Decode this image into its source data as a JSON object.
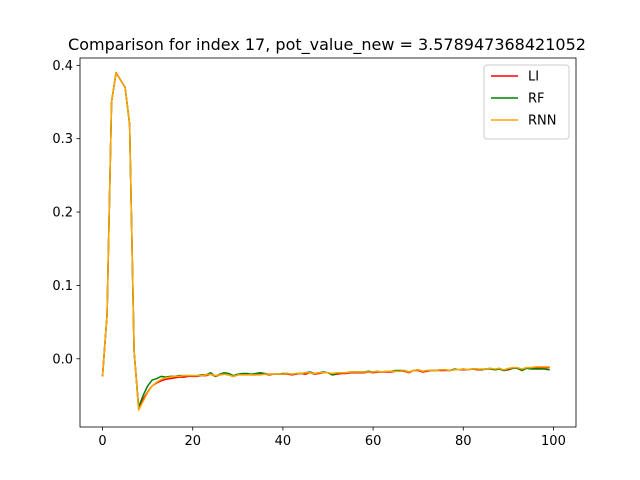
{
  "chart_data": {
    "type": "line",
    "title": "Comparison for index 17, pot_value_new = 3.578947368421052",
    "xlabel": "",
    "ylabel": "",
    "xlim": [
      -5,
      105
    ],
    "ylim": [
      -0.093,
      0.41
    ],
    "x_ticks": [
      0,
      20,
      40,
      60,
      80,
      100
    ],
    "x_tick_labels": [
      "0",
      "20",
      "40",
      "60",
      "80",
      "100"
    ],
    "y_ticks": [
      0.0,
      0.1,
      0.2,
      0.3,
      0.4
    ],
    "y_tick_labels": [
      "0.0",
      "0.1",
      "0.2",
      "0.3",
      "0.4"
    ],
    "grid": false,
    "legend_position": "top-right",
    "x": [
      0,
      1,
      2,
      3,
      4,
      5,
      6,
      7,
      8,
      9,
      10,
      11,
      12,
      13,
      14,
      15,
      16,
      17,
      18,
      19,
      20,
      21,
      22,
      23,
      24,
      25,
      26,
      27,
      28,
      29,
      30,
      31,
      32,
      33,
      34,
      35,
      36,
      37,
      38,
      39,
      40,
      41,
      42,
      43,
      44,
      45,
      46,
      47,
      48,
      49,
      50,
      51,
      52,
      53,
      54,
      55,
      56,
      57,
      58,
      59,
      60,
      61,
      62,
      63,
      64,
      65,
      66,
      67,
      68,
      69,
      70,
      71,
      72,
      73,
      74,
      75,
      76,
      77,
      78,
      79,
      80,
      81,
      82,
      83,
      84,
      85,
      86,
      87,
      88,
      89,
      90,
      91,
      92,
      93,
      94,
      95,
      96,
      97,
      98,
      99
    ],
    "series": [
      {
        "name": "LI",
        "color": "#ff0000",
        "values": [
          -0.023,
          0.06,
          0.35,
          0.39,
          0.38,
          0.37,
          0.32,
          0.01,
          -0.068,
          -0.055,
          -0.045,
          -0.037,
          -0.033,
          -0.03,
          -0.028,
          -0.027,
          -0.026,
          -0.025,
          -0.025,
          -0.024,
          -0.024,
          -0.024,
          -0.023,
          -0.023,
          -0.021,
          -0.024,
          -0.022,
          -0.021,
          -0.022,
          -0.024,
          -0.022,
          -0.021,
          -0.021,
          -0.022,
          -0.022,
          -0.021,
          -0.021,
          -0.022,
          -0.021,
          -0.021,
          -0.021,
          -0.021,
          -0.022,
          -0.021,
          -0.02,
          -0.021,
          -0.019,
          -0.021,
          -0.02,
          -0.019,
          -0.019,
          -0.022,
          -0.021,
          -0.02,
          -0.02,
          -0.019,
          -0.019,
          -0.019,
          -0.019,
          -0.018,
          -0.019,
          -0.018,
          -0.018,
          -0.018,
          -0.018,
          -0.017,
          -0.017,
          -0.017,
          -0.019,
          -0.016,
          -0.016,
          -0.018,
          -0.017,
          -0.016,
          -0.016,
          -0.016,
          -0.016,
          -0.016,
          -0.015,
          -0.015,
          -0.015,
          -0.015,
          -0.014,
          -0.015,
          -0.015,
          -0.014,
          -0.013,
          -0.015,
          -0.013,
          -0.016,
          -0.015,
          -0.013,
          -0.013,
          -0.016,
          -0.013,
          -0.013,
          -0.013,
          -0.012,
          -0.012,
          -0.012
        ]
      },
      {
        "name": "RF",
        "color": "#008000",
        "values": [
          -0.023,
          0.06,
          0.35,
          0.39,
          0.38,
          0.37,
          0.32,
          0.01,
          -0.066,
          -0.05,
          -0.037,
          -0.029,
          -0.027,
          -0.024,
          -0.025,
          -0.024,
          -0.024,
          -0.023,
          -0.023,
          -0.023,
          -0.023,
          -0.023,
          -0.022,
          -0.022,
          -0.019,
          -0.024,
          -0.021,
          -0.019,
          -0.02,
          -0.023,
          -0.021,
          -0.02,
          -0.02,
          -0.021,
          -0.02,
          -0.019,
          -0.02,
          -0.021,
          -0.021,
          -0.021,
          -0.02,
          -0.02,
          -0.021,
          -0.02,
          -0.02,
          -0.019,
          -0.018,
          -0.02,
          -0.019,
          -0.018,
          -0.019,
          -0.022,
          -0.02,
          -0.019,
          -0.019,
          -0.018,
          -0.018,
          -0.018,
          -0.018,
          -0.017,
          -0.018,
          -0.017,
          -0.018,
          -0.017,
          -0.017,
          -0.016,
          -0.016,
          -0.016,
          -0.018,
          -0.016,
          -0.015,
          -0.017,
          -0.016,
          -0.016,
          -0.016,
          -0.015,
          -0.015,
          -0.016,
          -0.014,
          -0.015,
          -0.014,
          -0.015,
          -0.014,
          -0.014,
          -0.015,
          -0.014,
          -0.014,
          -0.015,
          -0.014,
          -0.016,
          -0.014,
          -0.013,
          -0.013,
          -0.016,
          -0.013,
          -0.014,
          -0.014,
          -0.014,
          -0.014,
          -0.015
        ]
      },
      {
        "name": "RNN",
        "color": "#ffa500",
        "values": [
          -0.023,
          0.06,
          0.35,
          0.39,
          0.38,
          0.37,
          0.32,
          0.01,
          -0.07,
          -0.058,
          -0.046,
          -0.037,
          -0.032,
          -0.028,
          -0.026,
          -0.025,
          -0.024,
          -0.024,
          -0.023,
          -0.023,
          -0.023,
          -0.023,
          -0.023,
          -0.022,
          -0.021,
          -0.023,
          -0.022,
          -0.021,
          -0.022,
          -0.024,
          -0.022,
          -0.022,
          -0.022,
          -0.022,
          -0.022,
          -0.022,
          -0.021,
          -0.021,
          -0.021,
          -0.021,
          -0.021,
          -0.02,
          -0.021,
          -0.02,
          -0.02,
          -0.019,
          -0.019,
          -0.02,
          -0.019,
          -0.019,
          -0.019,
          -0.02,
          -0.019,
          -0.019,
          -0.019,
          -0.018,
          -0.018,
          -0.018,
          -0.018,
          -0.018,
          -0.018,
          -0.017,
          -0.018,
          -0.017,
          -0.017,
          -0.017,
          -0.017,
          -0.016,
          -0.018,
          -0.016,
          -0.015,
          -0.017,
          -0.016,
          -0.016,
          -0.016,
          -0.015,
          -0.015,
          -0.016,
          -0.015,
          -0.015,
          -0.014,
          -0.015,
          -0.014,
          -0.014,
          -0.014,
          -0.014,
          -0.013,
          -0.014,
          -0.013,
          -0.015,
          -0.013,
          -0.012,
          -0.012,
          -0.014,
          -0.012,
          -0.012,
          -0.011,
          -0.011,
          -0.011,
          -0.011
        ]
      }
    ]
  }
}
